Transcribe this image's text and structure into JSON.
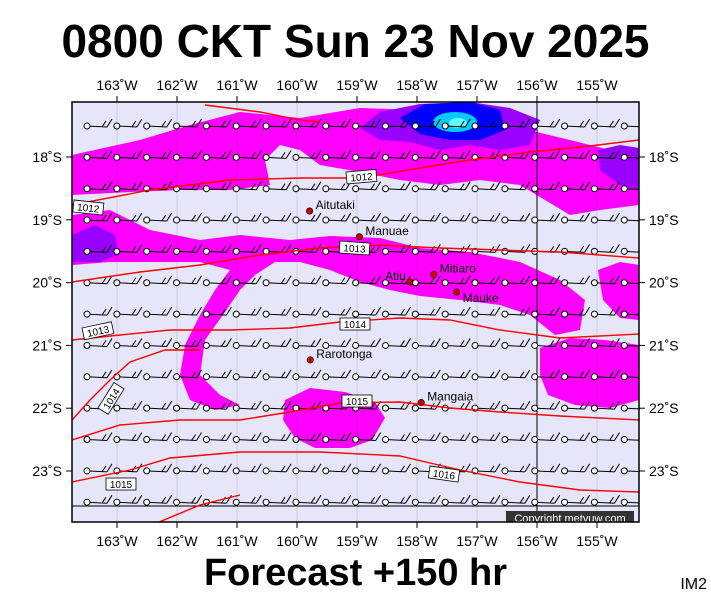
{
  "title": "0800 CKT Sun 23 Nov 2025",
  "footer": "Forecast +150 hr",
  "corner_label": "IM2",
  "copyright": "Copyright metvuw.com",
  "colors": {
    "background": "#e6e6fa",
    "precip_light": "#ff00ff",
    "precip_medium": "#9900ff",
    "precip_heavy": "#0000ff",
    "precip_extreme": "#00ccff",
    "isobar": "#ff0000",
    "place_marker": "#cc0000"
  },
  "longitudes": [
    "163˚W",
    "162˚W",
    "161˚W",
    "160˚W",
    "159˚W",
    "158˚W",
    "157˚W",
    "156˚W",
    "155˚W"
  ],
  "latitudes": [
    "18˚S",
    "19˚S",
    "20˚S",
    "21˚S",
    "22˚S",
    "23˚S"
  ],
  "places": [
    {
      "name": "Aitutaki",
      "lon": -159.79,
      "lat": -18.86
    },
    {
      "name": "Manuae",
      "lon": -158.96,
      "lat": -19.27
    },
    {
      "name": "Mitiaro",
      "lon": -157.72,
      "lat": -19.87
    },
    {
      "name": "Atiu",
      "lon": -158.12,
      "lat": -19.99
    },
    {
      "name": "Mauke",
      "lon": -157.34,
      "lat": -20.15
    },
    {
      "name": "Rarotonga",
      "lon": -159.78,
      "lat": -21.23
    },
    {
      "name": "Mangaia",
      "lon": -157.93,
      "lat": -21.91
    }
  ],
  "isobars": [
    "1012",
    "1013",
    "1014",
    "1015",
    "1016"
  ]
}
